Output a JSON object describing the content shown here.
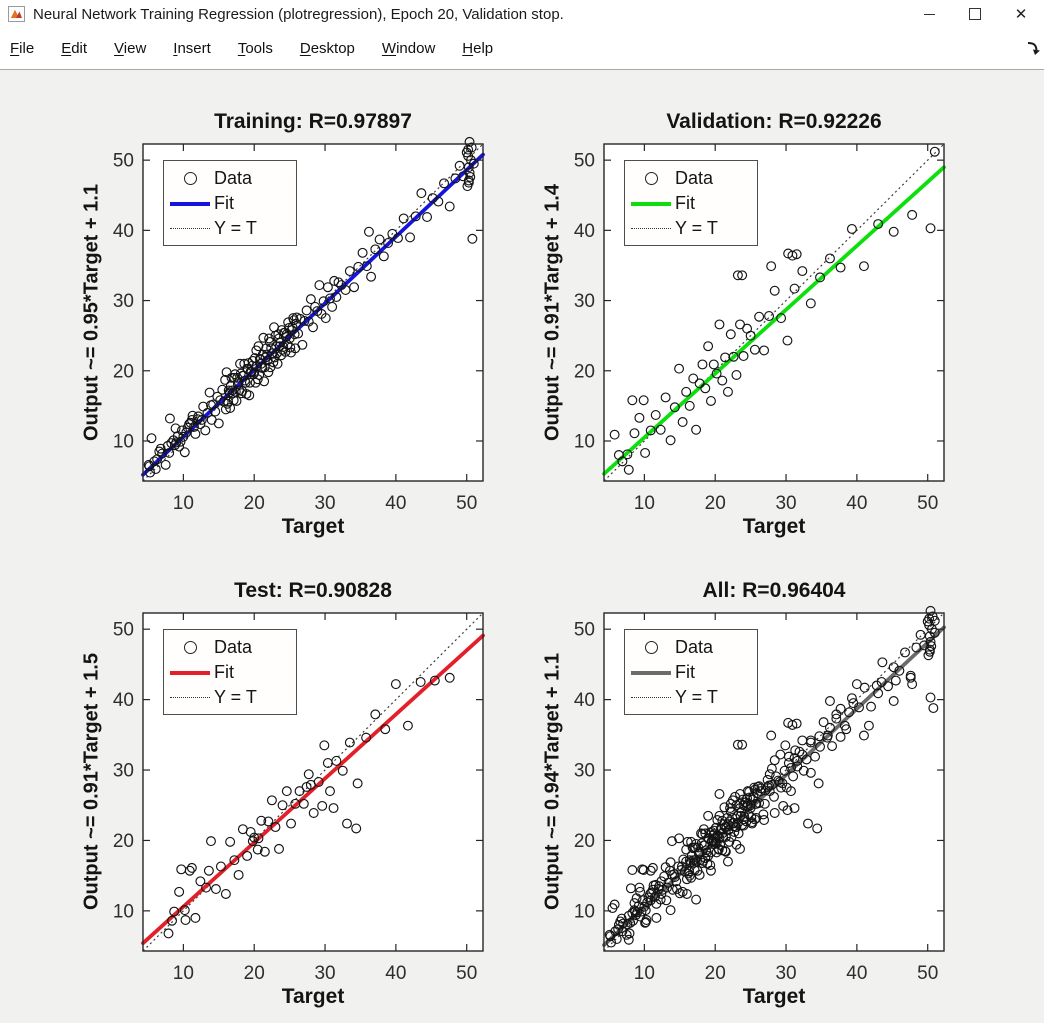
{
  "window": {
    "title": "Neural Network Training Regression (plotregression), Epoch 20, Validation stop.",
    "app_icon": "matlab-figure-icon",
    "controls": {
      "minimize": "minimize",
      "maximize": "maximize",
      "close": "close"
    }
  },
  "menu_bar": {
    "items": [
      "File",
      "Edit",
      "View",
      "Insert",
      "Tools",
      "Desktop",
      "Window",
      "Help"
    ],
    "dock_icon": "dock-figure-arrow"
  },
  "legend": {
    "data_label": "Data",
    "fit_label": "Fit",
    "identity_label": "Y = T"
  },
  "chart_data": [
    {
      "name": "training",
      "type": "scatter",
      "title": "Training: R=0.97897",
      "r_value": 0.97897,
      "xlabel": "Target",
      "ylabel": "Output ~= 0.95*Target + 1.1",
      "fit_slope": 0.95,
      "fit_intercept": 1.1,
      "fit_color": "#1414dd",
      "marker_color": "#141414",
      "identity_line": "Y = T",
      "xlim": [
        4.3,
        52.3
      ],
      "ylim": [
        4.3,
        52.3
      ],
      "ticks": [
        10,
        20,
        30,
        40,
        50
      ],
      "grid": false,
      "legend_position": "upper-left",
      "points": [
        5.2,
        6.4,
        6.1,
        6.0,
        6.8,
        8.9,
        7.5,
        6.6,
        8.3,
        9.7,
        8.9,
        11.8,
        9.6,
        9.9,
        10.2,
        8.4,
        10.8,
        12.4,
        11.3,
        13.6,
        11.7,
        11.0,
        9.0,
        9.8,
        6.3,
        7.4,
        7.0,
        8.2,
        7.8,
        9.3,
        8.6,
        10.1,
        9.2,
        10.7,
        9.8,
        11.5,
        10.4,
        11.2,
        11.0,
        12.6,
        11.5,
        12.0,
        12.0,
        13.1,
        8.0,
        8.3,
        8.8,
        9.4,
        9.4,
        9.2,
        10.0,
        10.6,
        10.6,
        11.9,
        11.2,
        13.0,
        5.9,
        7.1,
        6.6,
        8.5,
        5.3,
        5.5,
        5.1,
        6.6,
        12.1,
        13.5,
        12.4,
        12.4,
        12.8,
        14.9,
        13.1,
        11.5,
        13.4,
        14.0,
        13.7,
        16.9,
        14.0,
        13.0,
        14.2,
        15.2,
        14.5,
        14.2,
        14.8,
        16.3,
        15.0,
        12.5,
        15.2,
        15.8,
        15.5,
        17.3,
        15.7,
        15.6,
        15.9,
        18.7,
        16.0,
        14.5,
        13.9,
        15.1,
        12.6,
        13.0,
        16.1,
        19.8,
        16.3,
        15.6,
        16.4,
        17.2,
        16.6,
        14.7,
        16.8,
        19.0,
        16.9,
        17.2,
        17.1,
        15.8,
        17.3,
        19.5,
        17.4,
        17.0,
        17.6,
        19.0,
        17.8,
        18.4,
        17.9,
        17.2,
        18.1,
        19.6,
        18.2,
        16.8,
        18.4,
        19.3,
        18.6,
        21.0,
        18.7,
        18.6,
        18.9,
        16.7,
        19.1,
        20.2,
        19.2,
        21.1,
        19.4,
        18.3,
        19.6,
        19.8,
        19.7,
        20.7,
        19.9,
        19.5,
        20.1,
        21.8,
        20.2,
        18.3,
        20.4,
        20.7,
        20.6,
        23.5,
        20.7,
        19.4,
        20.9,
        21.6,
        21.1,
        20.4,
        21.2,
        22.3,
        21.4,
        18.5,
        21.6,
        21.9,
        21.7,
        23.2,
        21.9,
        21.5,
        22.1,
        24.6,
        22.3,
        20.5,
        22.4,
        23.2,
        22.6,
        22.5,
        22.8,
        26.2,
        22.9,
        21.9,
        23.1,
        23.5,
        23.3,
        21.0,
        23.4,
        25.2,
        23.6,
        23.5,
        23.8,
        22.2,
        23.9,
        25.8,
        24.1,
        23.4,
        24.3,
        25.4,
        24.5,
        24.8,
        24.7,
        23.7,
        24.9,
        26.1,
        25.1,
        23.3,
        25.3,
        25.8,
        25.5,
        27.5,
        25.7,
        25.2,
        25.8,
        23.2,
        25.9,
        26.7,
        26.0,
        27.6,
        16.2,
        15.3,
        16.5,
        16.9,
        16.7,
        17.9,
        17.0,
        16.8,
        17.2,
        19.0,
        17.5,
        15.7,
        17.7,
        18.1,
        18.0,
        21.0,
        18.3,
        17.1,
        18.5,
        19.3,
        18.8,
        18.3,
        19.0,
        20.3,
        19.3,
        16.5,
        19.5,
        19.9,
        19.8,
        21.4,
        20.0,
        19.7,
        20.3,
        22.9,
        20.5,
        18.8,
        20.8,
        21.7,
        21.0,
        21.0,
        21.3,
        24.7,
        21.5,
        20.5,
        21.8,
        22.3,
        22.0,
        19.8,
        22.2,
        24.1,
        22.5,
        22.5,
        22.7,
        21.2,
        23.0,
        25.0,
        23.2,
        22.5,
        23.5,
        24.6,
        23.7,
        24.0,
        24.0,
        23.0,
        24.2,
        25.4,
        24.4,
        22.7,
        24.6,
        25.2,
        24.8,
        26.9,
        25.0,
        24.6,
        25.2,
        22.6,
        25.4,
        26.2,
        25.6,
        27.2,
        26.2,
        25.3,
        26.5,
        27.4,
        26.8,
        23.7,
        27.1,
        27.1,
        27.4,
        28.6,
        27.7,
        27.0,
        28.0,
        30.2,
        28.3,
        26.2,
        28.6,
        29.1,
        28.9,
        28.5,
        29.2,
        32.2,
        29.5,
        28.1,
        29.8,
        29.9,
        30.1,
        27.5,
        30.4,
        31.9,
        30.7,
        30.3,
        31.0,
        29.1,
        31.3,
        32.8,
        31.6,
        30.5,
        31.9,
        32.6,
        32.3,
        32.2,
        32.9,
        31.5,
        33.5,
        34.2,
        34.1,
        31.9,
        34.7,
        34.8,
        35.3,
        36.8,
        35.9,
        34.9,
        36.5,
        33.4,
        37.1,
        37.3,
        37.7,
        38.7,
        38.3,
        36.3,
        38.9,
        38.2,
        39.5,
        39.5,
        40.3,
        38.9,
        41.1,
        41.7,
        42.0,
        39.0,
        42.8,
        42.0,
        43.6,
        45.3,
        44.4,
        41.9,
        45.2,
        44.6,
        46.0,
        44.1,
        46.8,
        46.7,
        47.6,
        43.4,
        48.4,
        47.4,
        49.0,
        49.2,
        49.5,
        47.7,
        50.0,
        51.1,
        50.3,
        47.1,
        50.6,
        50.0,
        51.0,
        49.5,
        50.8,
        38.8,
        50.1,
        46.3,
        50.5,
        47.6,
        50.2,
        51.5,
        50.7,
        51.8,
        36.2,
        39.8,
        5.5,
        10.4,
        8.1,
        13.2,
        50.3,
        49.0,
        50.4,
        48.2,
        50.3,
        46.8,
        50.2,
        50.6,
        50.4,
        52.6
      ]
    },
    {
      "name": "validation",
      "type": "scatter",
      "title": "Validation: R=0.92226",
      "r_value": 0.92226,
      "xlabel": "Target",
      "ylabel": "Output ~= 0.91*Target + 1.4",
      "fit_slope": 0.91,
      "fit_intercept": 1.4,
      "fit_color": "#0ddf0d",
      "marker_color": "#141414",
      "identity_line": "Y = T",
      "xlim": [
        4.3,
        52.3
      ],
      "ylim": [
        4.3,
        52.3
      ],
      "ticks": [
        10,
        20,
        30,
        40,
        50
      ],
      "grid": false,
      "legend_position": "upper-left",
      "points": [
        5.8,
        10.9,
        6.9,
        7.1,
        7.8,
        5.9,
        8.6,
        11.1,
        9.3,
        13.3,
        10.1,
        8.3,
        10.9,
        11.5,
        11.6,
        13.7,
        12.3,
        11.6,
        13.0,
        16.2,
        13.7,
        10.1,
        14.3,
        14.8,
        14.9,
        20.3,
        15.4,
        12.7,
        15.9,
        17.0,
        16.4,
        15.0,
        16.9,
        18.9,
        17.3,
        11.6,
        17.8,
        18.2,
        18.2,
        20.9,
        18.6,
        17.5,
        19.0,
        23.5,
        19.4,
        15.7,
        19.8,
        20.9,
        20.2,
        19.6,
        20.6,
        26.6,
        21.0,
        18.6,
        21.4,
        21.9,
        21.8,
        17.0,
        22.2,
        25.2,
        22.6,
        22.0,
        23.0,
        19.4,
        23.5,
        26.6,
        24.0,
        22.1,
        24.5,
        26.0,
        25.0,
        25.0,
        25.6,
        23.0,
        26.2,
        27.7,
        26.9,
        22.9,
        27.6,
        27.8,
        28.4,
        31.4,
        29.3,
        27.5,
        30.2,
        24.3,
        31.2,
        31.7,
        32.3,
        34.2,
        33.5,
        29.6,
        34.8,
        33.3,
        36.2,
        36.0,
        37.7,
        34.7,
        39.3,
        40.2,
        41.0,
        34.9,
        43.0,
        40.9,
        45.2,
        39.8,
        47.8,
        42.2,
        50.4,
        40.3,
        51.0,
        51.2,
        8.3,
        15.8,
        9.9,
        15.8,
        23.2,
        33.6,
        23.8,
        33.6,
        27.9,
        34.9,
        30.3,
        36.7,
        30.9,
        36.4,
        31.5,
        36.6,
        6.4,
        8.0,
        7.6,
        8.1
      ]
    },
    {
      "name": "test",
      "type": "scatter",
      "title": "Test: R=0.90828",
      "r_value": 0.90828,
      "xlabel": "Target",
      "ylabel": "Output ~= 0.91*Target + 1.5",
      "fit_slope": 0.91,
      "fit_intercept": 1.5,
      "fit_color": "#e3202a",
      "marker_color": "#141414",
      "identity_line": "Y = T",
      "xlim": [
        4.3,
        52.3
      ],
      "ylim": [
        4.3,
        52.3
      ],
      "ticks": [
        10,
        20,
        30,
        40,
        50
      ],
      "grid": false,
      "legend_position": "upper-left",
      "points": [
        7.9,
        6.8,
        8.7,
        9.9,
        9.4,
        12.7,
        10.2,
        10.1,
        10.9,
        15.7,
        11.7,
        9.0,
        12.4,
        14.2,
        13.2,
        13.3,
        13.9,
        19.9,
        14.6,
        13.1,
        15.3,
        16.3,
        16.0,
        12.4,
        16.6,
        19.8,
        17.2,
        17.2,
        17.8,
        15.1,
        18.4,
        21.6,
        19.0,
        17.8,
        19.5,
        21.2,
        20.0,
        20.4,
        20.5,
        18.7,
        21.0,
        22.8,
        21.5,
        18.4,
        22.0,
        22.7,
        22.5,
        25.7,
        23.0,
        21.9,
        23.5,
        18.8,
        24.0,
        25.0,
        24.6,
        27.0,
        25.2,
        22.4,
        25.8,
        25.2,
        26.4,
        27.0,
        27.0,
        25.2,
        27.7,
        29.4,
        28.4,
        23.9,
        29.1,
        28.3,
        29.9,
        33.5,
        30.7,
        27.0,
        31.6,
        31.3,
        32.5,
        29.9,
        33.5,
        33.9,
        34.6,
        28.1,
        35.8,
        34.6,
        37.1,
        37.9,
        38.5,
        35.8,
        40.0,
        42.2,
        41.7,
        36.3,
        43.5,
        42.5,
        45.5,
        42.7,
        47.6,
        43.1,
        33.1,
        22.4,
        34.4,
        21.7,
        31.2,
        24.6,
        29.6,
        24.9,
        30.4,
        31.0,
        9.7,
        15.9,
        11.2,
        16.1,
        13.6,
        15.7,
        8.4,
        8.6,
        10.3,
        8.7,
        19.8,
        19.9,
        20.6,
        20.3,
        27.4,
        27.6,
        28.0,
        27.9
      ]
    },
    {
      "name": "all",
      "type": "scatter",
      "title": "All: R=0.96404",
      "r_value": 0.96404,
      "xlabel": "Target",
      "ylabel": "Output ~= 0.94*Target + 1.1",
      "fit_slope": 0.94,
      "fit_intercept": 1.1,
      "fit_color": "#6b6b6b",
      "marker_color": "#141414",
      "identity_line": "Y = T",
      "xlim": [
        4.3,
        52.3
      ],
      "ylim": [
        4.3,
        52.3
      ],
      "ticks": [
        10,
        20,
        30,
        40,
        50
      ],
      "grid": false,
      "legend_position": "upper-left",
      "points_from": [
        "training",
        "validation",
        "test"
      ]
    }
  ]
}
